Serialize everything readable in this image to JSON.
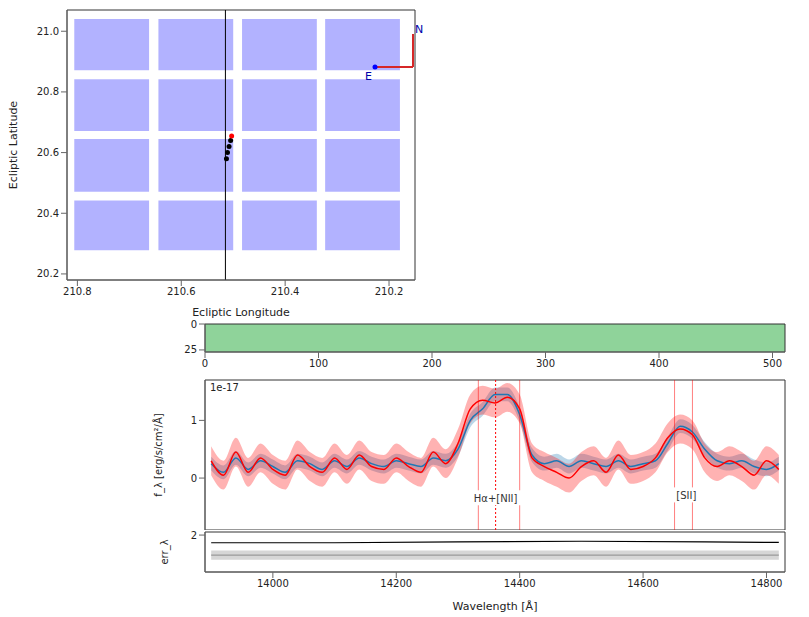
{
  "chart_data": [
    {
      "type": "scatter",
      "x_label": "Ecliptic Longitude",
      "y_label": "Ecliptic Latitude",
      "xlim": [
        210.82,
        210.15
      ],
      "xticks": [
        210.8,
        210.6,
        210.4,
        210.2
      ],
      "ylim": [
        20.18,
        21.07
      ],
      "yticks": [
        20.2,
        20.4,
        20.6,
        20.8,
        {
          "value": 21,
          "label": "21.0"
        }
      ],
      "detector_color": "#0000ff",
      "detectors": [
        {
          "lon": [
            210.806,
            210.662
          ],
          "lat": [
            21.04,
            20.871
          ]
        },
        {
          "lon": [
            210.644,
            210.5
          ],
          "lat": [
            21.04,
            20.871
          ]
        },
        {
          "lon": [
            210.483,
            210.339
          ],
          "lat": [
            21.04,
            20.871
          ]
        },
        {
          "lon": [
            210.323,
            210.179
          ],
          "lat": [
            21.04,
            20.871
          ]
        },
        {
          "lon": [
            210.806,
            210.662
          ],
          "lat": [
            20.842,
            20.671
          ]
        },
        {
          "lon": [
            210.644,
            210.5
          ],
          "lat": [
            20.842,
            20.671
          ]
        },
        {
          "lon": [
            210.483,
            210.339
          ],
          "lat": [
            20.842,
            20.671
          ]
        },
        {
          "lon": [
            210.323,
            210.179
          ],
          "lat": [
            20.842,
            20.671
          ]
        },
        {
          "lon": [
            210.806,
            210.662
          ],
          "lat": [
            20.645,
            20.471
          ]
        },
        {
          "lon": [
            210.644,
            210.5
          ],
          "lat": [
            20.645,
            20.471
          ]
        },
        {
          "lon": [
            210.483,
            210.339
          ],
          "lat": [
            20.645,
            20.471
          ]
        },
        {
          "lon": [
            210.323,
            210.179
          ],
          "lat": [
            20.645,
            20.471
          ]
        },
        {
          "lon": [
            210.806,
            210.662
          ],
          "lat": [
            20.442,
            20.278
          ]
        },
        {
          "lon": [
            210.644,
            210.5
          ],
          "lat": [
            20.442,
            20.278
          ]
        },
        {
          "lon": [
            210.483,
            210.339
          ],
          "lat": [
            20.442,
            20.278
          ]
        },
        {
          "lon": [
            210.323,
            210.179
          ],
          "lat": [
            20.442,
            20.278
          ]
        }
      ],
      "points": [
        {
          "lon": 210.513,
          "lat": 20.58,
          "color": "#000000"
        },
        {
          "lon": 210.511,
          "lat": 20.6,
          "color": "#000000"
        },
        {
          "lon": 210.508,
          "lat": 20.62,
          "color": "#000000"
        },
        {
          "lon": 210.505,
          "lat": 20.64,
          "color": "#000000"
        },
        {
          "lon": 210.503,
          "lat": 20.655,
          "color": "#ff0000"
        }
      ],
      "marker_line_lon": 210.515,
      "compass": [
        "N",
        "E"
      ]
    },
    {
      "type": "image",
      "xlim": [
        0,
        511
      ],
      "xticks": [
        0,
        100,
        200,
        300,
        400,
        500
      ],
      "ylim": [
        0,
        27
      ],
      "yticks": [
        0,
        25
      ],
      "color": "#8fd39a"
    },
    {
      "type": "line",
      "y_label": "f_λ [erg/s/cm²/Å]",
      "scale_label": "1e-17",
      "xlim": [
        13890,
        14830
      ],
      "ylim": [
        -0.9,
        1.7
      ],
      "yticks": [
        0,
        1
      ],
      "x": [
        13900,
        13920,
        13940,
        13960,
        13980,
        14000,
        14020,
        14040,
        14060,
        14080,
        14100,
        14120,
        14140,
        14160,
        14180,
        14200,
        14220,
        14240,
        14260,
        14280,
        14300,
        14320,
        14340,
        14360,
        14380,
        14400,
        14420,
        14440,
        14460,
        14480,
        14500,
        14520,
        14540,
        14560,
        14580,
        14600,
        14620,
        14640,
        14660,
        14680,
        14700,
        14720,
        14740,
        14760,
        14780,
        14800,
        14820
      ],
      "series": [
        {
          "color": "#1f77b4",
          "error": 0.12,
          "values": [
            0.25,
            0.1,
            0.35,
            0.15,
            0.3,
            0.2,
            0.1,
            0.3,
            0.25,
            0.15,
            0.3,
            0.2,
            0.35,
            0.25,
            0.2,
            0.3,
            0.25,
            0.2,
            0.35,
            0.3,
            0.5,
            1.0,
            1.2,
            1.45,
            1.45,
            1.1,
            0.4,
            0.25,
            0.3,
            0.2,
            0.3,
            0.25,
            0.2,
            0.3,
            0.2,
            0.25,
            0.3,
            0.6,
            0.9,
            0.8,
            0.5,
            0.3,
            0.25,
            0.3,
            0.2,
            0.15,
            0.25
          ]
        },
        {
          "color": "#ff0000",
          "error": 0.25,
          "values": [
            0.3,
            0.05,
            0.45,
            0.1,
            0.35,
            0.15,
            0.05,
            0.4,
            0.2,
            0.1,
            0.35,
            0.15,
            0.4,
            0.2,
            0.15,
            0.35,
            0.2,
            0.1,
            0.45,
            0.25,
            0.6,
            1.2,
            1.35,
            1.3,
            1.4,
            1.2,
            0.35,
            0.2,
            0.1,
            0.0,
            0.2,
            0.3,
            0.1,
            0.4,
            0.15,
            0.2,
            0.35,
            0.7,
            0.85,
            0.75,
            0.35,
            0.2,
            0.3,
            0.2,
            0.05,
            0.3,
            0.15
          ]
        }
      ],
      "line_color": "#ff0000",
      "lines": [
        {
          "x": 14333,
          "line_style": "solid"
        },
        {
          "x": 14361,
          "line_style": "dotted"
        },
        {
          "x": 14400,
          "line_style": "solid"
        },
        {
          "x": 14651,
          "line_style": "solid"
        },
        {
          "x": 14680,
          "line_style": "solid"
        }
      ],
      "annotations": [
        {
          "text": "Hα+[NII]",
          "x": 14361,
          "y": -0.35
        },
        {
          "text": "[SII]",
          "x": 14670,
          "y": -0.3
        }
      ]
    },
    {
      "type": "line",
      "x_label": "Wavelength [Å]",
      "y_label": "err_λ",
      "xlim": [
        13890,
        14830
      ],
      "xticks": [
        14000,
        14200,
        14400,
        14600,
        14800
      ],
      "ylim": [
        0.8,
        2.1
      ],
      "yticks": [
        2
      ],
      "x": [
        13900,
        14100,
        14300,
        14500,
        14700,
        14820
      ],
      "series": [
        {
          "color": "#000000",
          "values": [
            1.75,
            1.75,
            1.78,
            1.8,
            1.78,
            1.76
          ]
        },
        {
          "color": "#999999",
          "error": 0.15,
          "values": [
            1.35,
            1.35,
            1.35,
            1.35,
            1.35,
            1.35
          ]
        }
      ]
    }
  ]
}
